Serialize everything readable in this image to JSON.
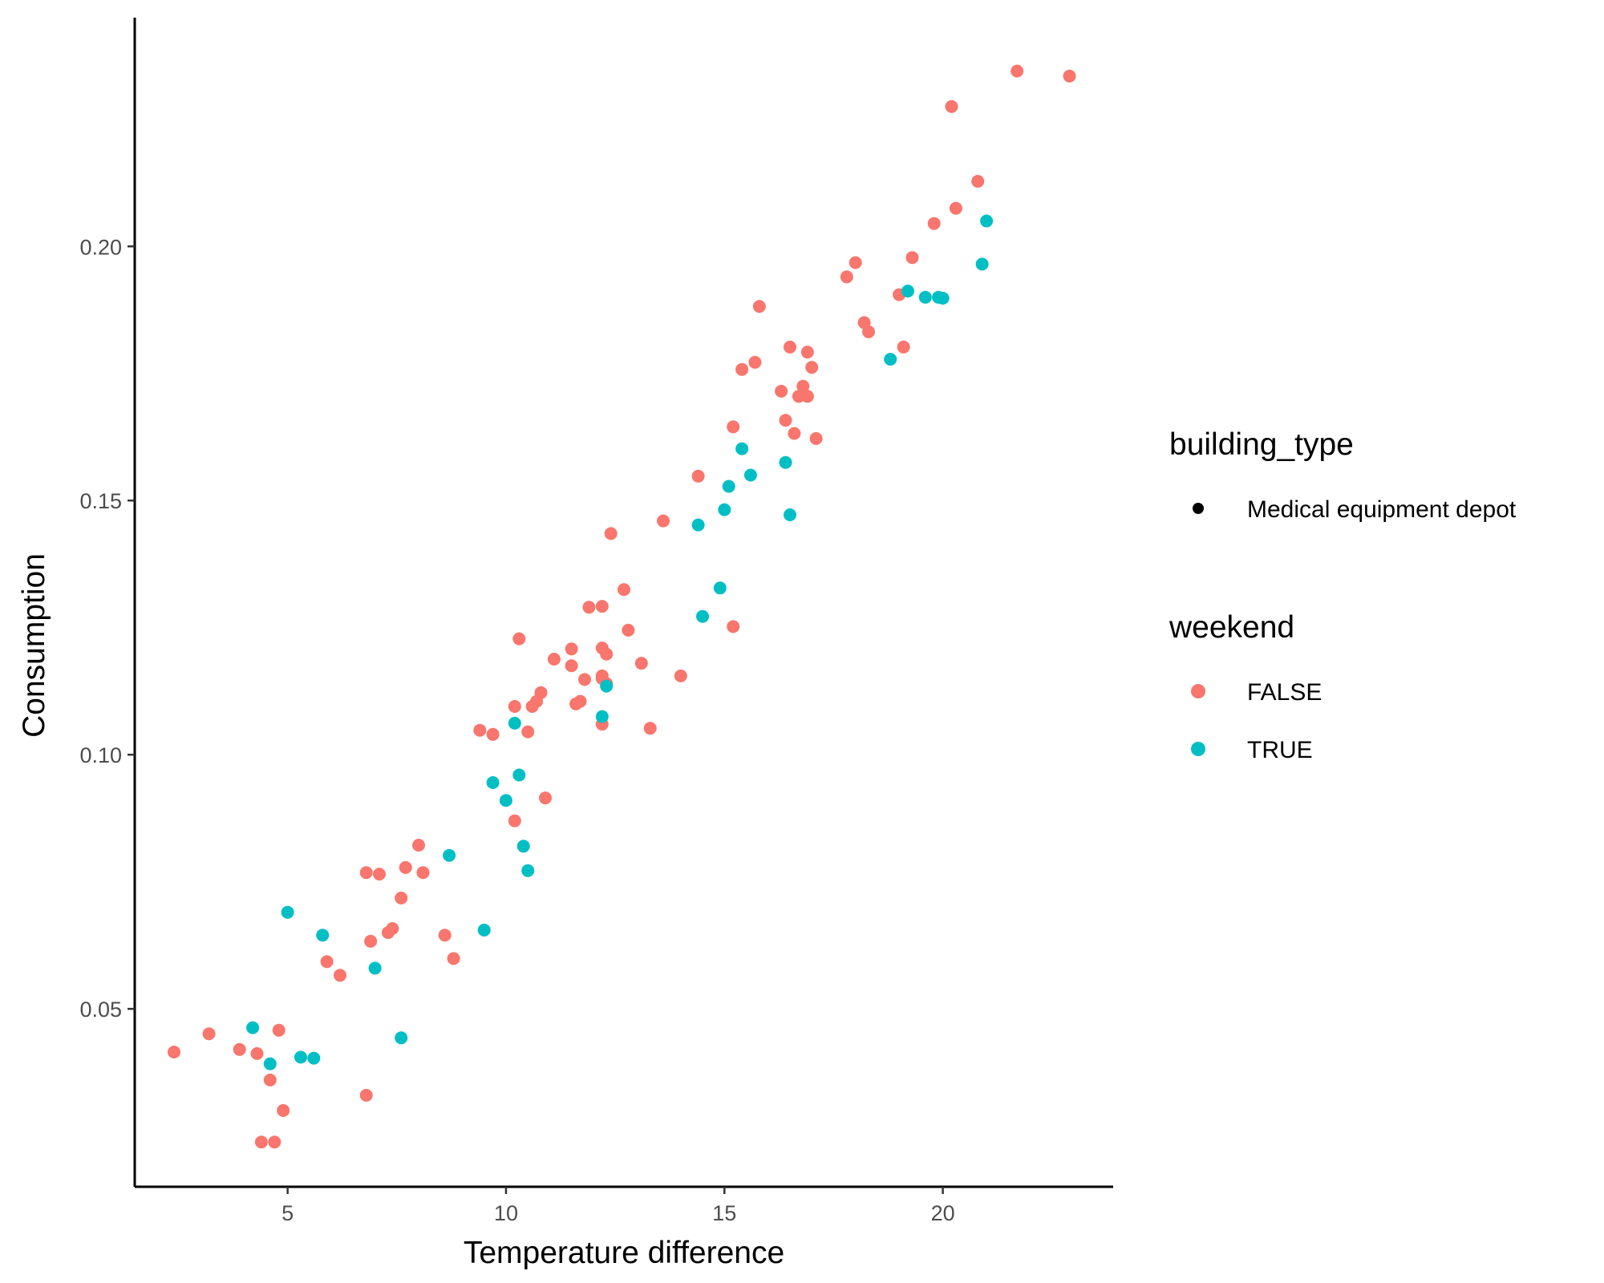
{
  "chart_data": {
    "type": "scatter",
    "title": "",
    "xlabel": "Temperature difference",
    "ylabel": "Consumption",
    "xlim": [
      1.5,
      23.9
    ],
    "ylim": [
      0.015,
      0.245
    ],
    "x_ticks": [
      5,
      10,
      15,
      20
    ],
    "x_tick_labels": [
      "5",
      "10",
      "15",
      "20"
    ],
    "y_ticks": [
      0.05,
      0.1,
      0.15,
      0.2
    ],
    "y_tick_labels": [
      "0.05",
      "0.10",
      "0.15",
      "0.20"
    ],
    "grid": false,
    "legend_position": "right",
    "legends": [
      {
        "title": "building_type",
        "entries": [
          {
            "label": "Medical equipment depot",
            "color": "#000000"
          }
        ]
      },
      {
        "title": "weekend",
        "entries": [
          {
            "label": "FALSE",
            "color": "#F8766D"
          },
          {
            "label": "TRUE",
            "color": "#00BFC4"
          }
        ]
      }
    ],
    "series": [
      {
        "name": "FALSE",
        "color": "#F8766D",
        "points": [
          [
            2.4,
            0.0415
          ],
          [
            3.2,
            0.0451
          ],
          [
            3.9,
            0.042
          ],
          [
            4.3,
            0.0412
          ],
          [
            4.4,
            0.0238
          ],
          [
            4.6,
            0.036
          ],
          [
            4.7,
            0.0238
          ],
          [
            4.8,
            0.0458
          ],
          [
            4.9,
            0.03
          ],
          [
            5.9,
            0.0593
          ],
          [
            6.2,
            0.0566
          ],
          [
            6.8,
            0.0768
          ],
          [
            6.8,
            0.033
          ],
          [
            6.9,
            0.0633
          ],
          [
            7.1,
            0.0765
          ],
          [
            7.3,
            0.065
          ],
          [
            7.4,
            0.0658
          ],
          [
            7.6,
            0.0718
          ],
          [
            7.7,
            0.0778
          ],
          [
            8.0,
            0.0822
          ],
          [
            8.1,
            0.0768
          ],
          [
            8.6,
            0.0645
          ],
          [
            8.8,
            0.0599
          ],
          [
            9.4,
            0.1048
          ],
          [
            9.7,
            0.104
          ],
          [
            10.2,
            0.087
          ],
          [
            10.2,
            0.1095
          ],
          [
            10.3,
            0.1228
          ],
          [
            10.5,
            0.1045
          ],
          [
            10.6,
            0.1095
          ],
          [
            10.7,
            0.1105
          ],
          [
            10.8,
            0.1122
          ],
          [
            10.9,
            0.0915
          ],
          [
            11.1,
            0.1188
          ],
          [
            11.5,
            0.1175
          ],
          [
            11.5,
            0.1208
          ],
          [
            11.6,
            0.11
          ],
          [
            11.7,
            0.1105
          ],
          [
            11.8,
            0.1148
          ],
          [
            11.9,
            0.129
          ],
          [
            12.2,
            0.1292
          ],
          [
            12.2,
            0.121
          ],
          [
            12.2,
            0.1155
          ],
          [
            12.2,
            0.115
          ],
          [
            12.2,
            0.106
          ],
          [
            12.3,
            0.114
          ],
          [
            12.3,
            0.1198
          ],
          [
            12.4,
            0.1435
          ],
          [
            12.7,
            0.1325
          ],
          [
            12.8,
            0.1245
          ],
          [
            13.1,
            0.118
          ],
          [
            13.3,
            0.1052
          ],
          [
            13.6,
            0.146
          ],
          [
            14.0,
            0.1155
          ],
          [
            14.4,
            0.1548
          ],
          [
            15.2,
            0.1645
          ],
          [
            15.2,
            0.1252
          ],
          [
            15.4,
            0.1758
          ],
          [
            15.7,
            0.1772
          ],
          [
            15.8,
            0.1882
          ],
          [
            16.3,
            0.1715
          ],
          [
            16.4,
            0.1658
          ],
          [
            16.5,
            0.1802
          ],
          [
            16.6,
            0.1632
          ],
          [
            16.7,
            0.1705
          ],
          [
            16.8,
            0.1725
          ],
          [
            16.9,
            0.1705
          ],
          [
            16.9,
            0.1792
          ],
          [
            17.0,
            0.1762
          ],
          [
            17.1,
            0.1622
          ],
          [
            17.8,
            0.194
          ],
          [
            18.0,
            0.1968
          ],
          [
            18.2,
            0.185
          ],
          [
            18.3,
            0.1832
          ],
          [
            19.0,
            0.1905
          ],
          [
            19.1,
            0.1802
          ],
          [
            19.3,
            0.1978
          ],
          [
            19.8,
            0.2045
          ],
          [
            20.2,
            0.2275
          ],
          [
            20.3,
            0.2075
          ],
          [
            20.8,
            0.2128
          ],
          [
            21.7,
            0.2345
          ],
          [
            22.9,
            0.2335
          ]
        ]
      },
      {
        "name": "TRUE",
        "color": "#00BFC4",
        "points": [
          [
            4.2,
            0.0463
          ],
          [
            4.6,
            0.0392
          ],
          [
            5.0,
            0.069
          ],
          [
            5.3,
            0.0405
          ],
          [
            5.6,
            0.0403
          ],
          [
            5.8,
            0.0645
          ],
          [
            7.0,
            0.058
          ],
          [
            7.6,
            0.0443
          ],
          [
            8.7,
            0.0802
          ],
          [
            9.5,
            0.0655
          ],
          [
            9.7,
            0.0945
          ],
          [
            10.0,
            0.091
          ],
          [
            10.2,
            0.1062
          ],
          [
            10.3,
            0.096
          ],
          [
            10.4,
            0.082
          ],
          [
            10.5,
            0.0772
          ],
          [
            12.2,
            0.1075
          ],
          [
            12.3,
            0.1135
          ],
          [
            14.4,
            0.1452
          ],
          [
            14.5,
            0.1272
          ],
          [
            14.9,
            0.1328
          ],
          [
            15.0,
            0.1482
          ],
          [
            15.1,
            0.1528
          ],
          [
            15.4,
            0.1602
          ],
          [
            15.6,
            0.155
          ],
          [
            16.4,
            0.1575
          ],
          [
            16.5,
            0.1472
          ],
          [
            18.8,
            0.1778
          ],
          [
            19.2,
            0.1912
          ],
          [
            19.6,
            0.19
          ],
          [
            19.9,
            0.19
          ],
          [
            20.0,
            0.1898
          ],
          [
            20.9,
            0.1965
          ],
          [
            21.0,
            0.205
          ]
        ]
      }
    ]
  }
}
